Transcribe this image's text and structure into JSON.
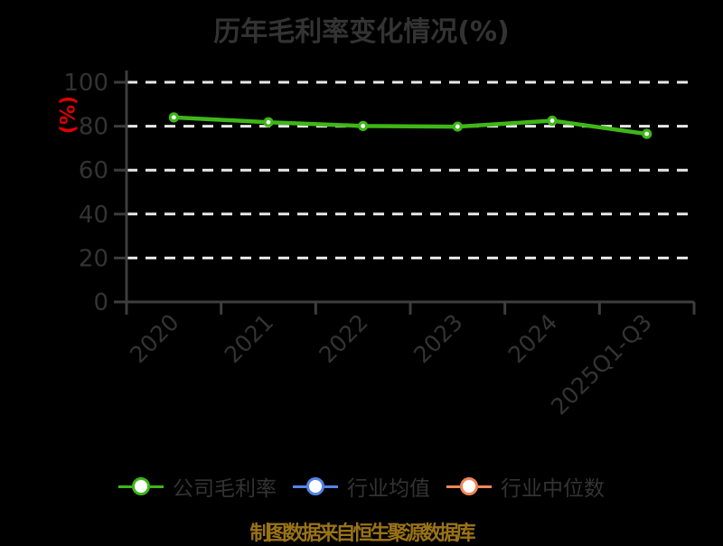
{
  "title": "历年毛利率变化情况(%)",
  "footer": "制图数据来自恒生聚源数据库",
  "colors": {
    "background": "#000000",
    "title": "#333333",
    "axis": "#3d3d3d",
    "tick_label": "#333333",
    "gridline": "#e8e8e8",
    "ylabel": "#e00000",
    "legend_label": "#333333",
    "footer": "#9a7315",
    "marker_fill": "#ffffff",
    "series_company": "#3fb618",
    "series_industry_avg": "#5585e8",
    "series_industry_median": "#f0875a"
  },
  "legend": {
    "items": [
      {
        "label": "公司毛利率",
        "color": "#3fb618"
      },
      {
        "label": "行业均值",
        "color": "#5585e8"
      },
      {
        "label": "行业中位数",
        "color": "#f0875a"
      }
    ]
  },
  "chart_data": {
    "type": "line",
    "title": "历年毛利率变化情况(%)",
    "xlabel": "",
    "ylabel": "(%)",
    "categories": [
      "2020",
      "2021",
      "2022",
      "2023",
      "2024",
      "2025Q1-Q3"
    ],
    "series": [
      {
        "name": "公司毛利率",
        "color": "#3fb618",
        "values": [
          84.0,
          81.8,
          80.1,
          79.8,
          82.5,
          76.5
        ]
      },
      {
        "name": "行业均值",
        "color": "#5585e8",
        "values": null
      },
      {
        "name": "行业中位数",
        "color": "#f0875a",
        "values": null
      }
    ],
    "ylim": [
      0,
      105
    ],
    "yticks": [
      0,
      20,
      40,
      60,
      80,
      100
    ],
    "grid": "horizontal-dashed",
    "legend_position": "bottom",
    "x_tick_rotation": 45
  }
}
